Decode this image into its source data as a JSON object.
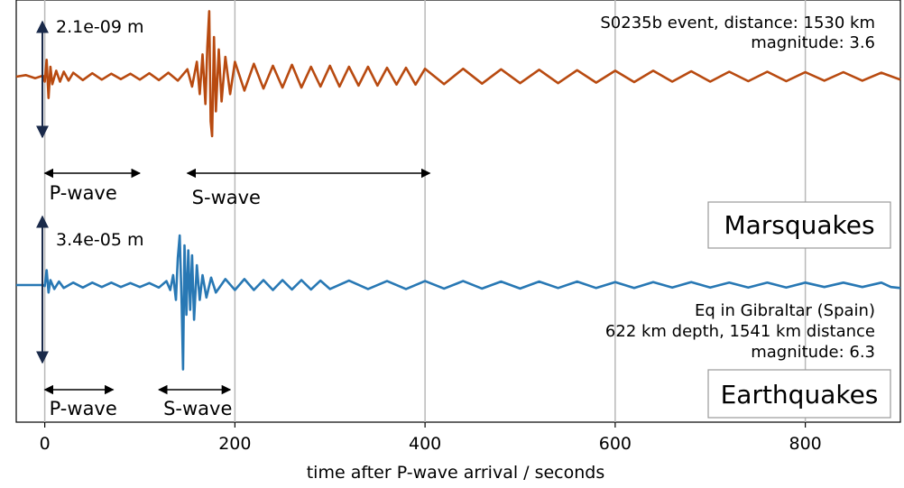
{
  "chart_data": {
    "type": "line",
    "xlabel": "time after P-wave arrival / seconds",
    "xlim": [
      -30,
      900
    ],
    "xticks": [
      0,
      200,
      400,
      600,
      800
    ],
    "grid": true,
    "series": [
      {
        "name": "S0235b",
        "panel_label": "Marsquakes",
        "color": "#b84a10",
        "scale_text": "2.1e-09 m",
        "info": [
          "S0235b event, distance: 1530 km",
          "magnitude: 3.6"
        ],
        "phases": [
          {
            "label": "P-wave",
            "x0": 0,
            "x1": 100
          },
          {
            "label": "S-wave",
            "x0": 150,
            "x1": 405
          }
        ],
        "points": [
          [
            -30,
            0.0
          ],
          [
            -20,
            0.03
          ],
          [
            -10,
            -0.03
          ],
          [
            -2,
            0.02
          ],
          [
            0,
            -0.1
          ],
          [
            2,
            0.34
          ],
          [
            4,
            -0.43
          ],
          [
            6,
            0.2
          ],
          [
            8,
            -0.15
          ],
          [
            12,
            0.12
          ],
          [
            16,
            -0.1
          ],
          [
            20,
            0.1
          ],
          [
            25,
            -0.08
          ],
          [
            30,
            0.08
          ],
          [
            40,
            -0.07
          ],
          [
            50,
            0.07
          ],
          [
            60,
            -0.06
          ],
          [
            70,
            0.06
          ],
          [
            80,
            -0.05
          ],
          [
            90,
            0.06
          ],
          [
            100,
            -0.06
          ],
          [
            110,
            0.07
          ],
          [
            120,
            -0.07
          ],
          [
            130,
            0.08
          ],
          [
            140,
            -0.08
          ],
          [
            150,
            0.15
          ],
          [
            155,
            -0.2
          ],
          [
            160,
            0.3
          ],
          [
            163,
            -0.35
          ],
          [
            166,
            0.45
          ],
          [
            169,
            -0.55
          ],
          [
            171,
            0.6
          ],
          [
            173,
            1.32
          ],
          [
            174.5,
            -0.9
          ],
          [
            176,
            -1.2
          ],
          [
            178,
            0.8
          ],
          [
            180,
            -0.7
          ],
          [
            183,
            0.55
          ],
          [
            186,
            -0.5
          ],
          [
            190,
            0.4
          ],
          [
            195,
            -0.35
          ],
          [
            200,
            0.3
          ],
          [
            210,
            -0.28
          ],
          [
            220,
            0.26
          ],
          [
            230,
            -0.24
          ],
          [
            240,
            0.22
          ],
          [
            250,
            -0.22
          ],
          [
            260,
            0.24
          ],
          [
            270,
            -0.22
          ],
          [
            280,
            0.2
          ],
          [
            290,
            -0.2
          ],
          [
            300,
            0.22
          ],
          [
            310,
            -0.2
          ],
          [
            320,
            0.2
          ],
          [
            330,
            -0.18
          ],
          [
            340,
            0.2
          ],
          [
            350,
            -0.18
          ],
          [
            360,
            0.18
          ],
          [
            370,
            -0.16
          ],
          [
            380,
            0.18
          ],
          [
            390,
            -0.16
          ],
          [
            400,
            0.16
          ],
          [
            420,
            -0.15
          ],
          [
            440,
            0.16
          ],
          [
            460,
            -0.14
          ],
          [
            480,
            0.15
          ],
          [
            500,
            -0.13
          ],
          [
            520,
            0.14
          ],
          [
            540,
            -0.13
          ],
          [
            560,
            0.13
          ],
          [
            580,
            -0.12
          ],
          [
            600,
            0.12
          ],
          [
            620,
            -0.11
          ],
          [
            640,
            0.12
          ],
          [
            660,
            -0.1
          ],
          [
            680,
            0.11
          ],
          [
            700,
            -0.1
          ],
          [
            720,
            0.1
          ],
          [
            740,
            -0.09
          ],
          [
            760,
            0.1
          ],
          [
            780,
            -0.09
          ],
          [
            800,
            0.09
          ],
          [
            820,
            -0.08
          ],
          [
            840,
            0.09
          ],
          [
            860,
            -0.08
          ],
          [
            880,
            0.08
          ],
          [
            900,
            -0.06
          ]
        ]
      },
      {
        "name": "Eq in Gibraltar (Spain)",
        "panel_label": "Earthquakes",
        "color": "#2878b4",
        "scale_text": "3.4e-05 m",
        "info": [
          "Eq in Gibraltar (Spain)",
          "622 km depth, 1541 km distance",
          "magnitude: 6.3"
        ],
        "phases": [
          {
            "label": "P-wave",
            "x0": 0,
            "x1": 72
          },
          {
            "label": "S-wave",
            "x0": 120,
            "x1": 195
          }
        ],
        "points": [
          [
            -30,
            0.0
          ],
          [
            -10,
            0.0
          ],
          [
            -2,
            0.0
          ],
          [
            0,
            -0.02
          ],
          [
            2,
            0.3
          ],
          [
            4,
            -0.15
          ],
          [
            6,
            0.1
          ],
          [
            10,
            -0.08
          ],
          [
            15,
            0.07
          ],
          [
            20,
            -0.06
          ],
          [
            30,
            0.05
          ],
          [
            40,
            -0.05
          ],
          [
            50,
            0.05
          ],
          [
            60,
            -0.04
          ],
          [
            70,
            0.05
          ],
          [
            80,
            -0.04
          ],
          [
            90,
            0.04
          ],
          [
            100,
            -0.04
          ],
          [
            110,
            0.04
          ],
          [
            120,
            -0.05
          ],
          [
            128,
            0.08
          ],
          [
            132,
            -0.1
          ],
          [
            135,
            0.2
          ],
          [
            138,
            -0.3
          ],
          [
            140,
            0.55
          ],
          [
            142,
            1.0
          ],
          [
            144,
            -0.4
          ],
          [
            145.5,
            -1.7
          ],
          [
            147,
            0.8
          ],
          [
            149,
            -0.6
          ],
          [
            151,
            0.7
          ],
          [
            153,
            -0.5
          ],
          [
            155,
            0.6
          ],
          [
            157,
            -0.7
          ],
          [
            160,
            0.4
          ],
          [
            163,
            -0.3
          ],
          [
            166,
            0.2
          ],
          [
            170,
            -0.25
          ],
          [
            175,
            0.15
          ],
          [
            180,
            -0.15
          ],
          [
            190,
            0.12
          ],
          [
            200,
            -0.1
          ],
          [
            210,
            0.12
          ],
          [
            220,
            -0.1
          ],
          [
            230,
            0.1
          ],
          [
            240,
            -0.1
          ],
          [
            250,
            0.1
          ],
          [
            260,
            -0.09
          ],
          [
            270,
            0.1
          ],
          [
            280,
            -0.09
          ],
          [
            290,
            0.09
          ],
          [
            300,
            -0.08
          ],
          [
            320,
            0.09
          ],
          [
            340,
            -0.08
          ],
          [
            360,
            0.08
          ],
          [
            380,
            -0.08
          ],
          [
            400,
            0.08
          ],
          [
            420,
            -0.07
          ],
          [
            440,
            0.08
          ],
          [
            460,
            -0.07
          ],
          [
            480,
            0.07
          ],
          [
            500,
            -0.07
          ],
          [
            520,
            0.07
          ],
          [
            540,
            -0.06
          ],
          [
            560,
            0.07
          ],
          [
            580,
            -0.06
          ],
          [
            600,
            0.06
          ],
          [
            620,
            -0.06
          ],
          [
            640,
            0.06
          ],
          [
            660,
            -0.05
          ],
          [
            680,
            0.06
          ],
          [
            700,
            -0.05
          ],
          [
            720,
            0.05
          ],
          [
            740,
            -0.05
          ],
          [
            760,
            0.05
          ],
          [
            780,
            -0.05
          ],
          [
            800,
            0.05
          ],
          [
            820,
            -0.04
          ],
          [
            840,
            0.05
          ],
          [
            860,
            -0.04
          ],
          [
            880,
            0.05
          ],
          [
            890,
            -0.04
          ],
          [
            900,
            -0.06
          ]
        ]
      }
    ]
  }
}
